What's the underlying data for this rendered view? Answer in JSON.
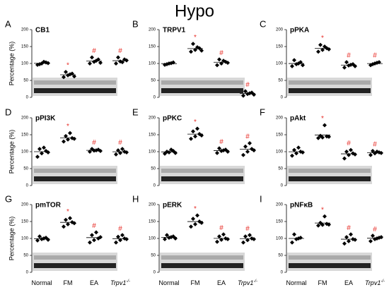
{
  "title": "Hypo",
  "y_label": "Percentage (%)",
  "categories": [
    {
      "text": "Normal"
    },
    {
      "text": "FM"
    },
    {
      "text": "EA"
    },
    {
      "text": "Trpv1",
      "sup": "-/-"
    }
  ],
  "chart_data": [
    {
      "type": "scatter",
      "panel": "A",
      "title": "CB1",
      "ylim": [
        0,
        200
      ],
      "yticks": [
        0,
        50,
        100,
        150,
        200
      ],
      "color": "#000000",
      "annotation_color": "#e8302a",
      "groups": [
        [
          96,
          100,
          103,
          98,
          105,
          101
        ],
        [
          60,
          65,
          70,
          75,
          68,
          62
        ],
        [
          100,
          105,
          112,
          118,
          108,
          102
        ],
        [
          100,
          106,
          112,
          118,
          104,
          109
        ]
      ],
      "annotations": [
        null,
        "*",
        "#",
        "#"
      ]
    },
    {
      "type": "scatter",
      "panel": "B",
      "title": "TRPV1",
      "ylim": [
        0,
        200
      ],
      "yticks": [
        0,
        50,
        100,
        150,
        200
      ],
      "color": "#000000",
      "annotation_color": "#e8302a",
      "groups": [
        [
          96,
          100,
          103,
          98,
          101
        ],
        [
          135,
          140,
          145,
          158,
          148,
          138
        ],
        [
          95,
          100,
          105,
          112,
          108,
          102
        ],
        [
          5,
          10,
          14,
          18,
          12,
          8
        ]
      ],
      "annotations": [
        null,
        "*",
        "#",
        "#"
      ]
    },
    {
      "type": "scatter",
      "panel": "C",
      "title": "pPKA",
      "ylim": [
        0,
        200
      ],
      "yticks": [
        0,
        50,
        100,
        150,
        200
      ],
      "color": "#000000",
      "annotation_color": "#e8302a",
      "groups": [
        [
          92,
          98,
          104,
          110,
          100,
          95
        ],
        [
          135,
          140,
          145,
          155,
          150,
          142
        ],
        [
          88,
          94,
          98,
          104,
          96,
          92
        ],
        [
          95,
          100,
          104,
          98,
          102
        ]
      ],
      "annotations": [
        null,
        "*",
        "#",
        "#"
      ]
    },
    {
      "type": "scatter",
      "panel": "D",
      "title": "pPI3K",
      "ylim": [
        0,
        200
      ],
      "yticks": [
        0,
        50,
        100,
        150,
        200
      ],
      "color": "#000000",
      "annotation_color": "#e8302a",
      "groups": [
        [
          85,
          95,
          102,
          108,
          112,
          98
        ],
        [
          130,
          136,
          140,
          146,
          155,
          138
        ],
        [
          100,
          103,
          106,
          108,
          104,
          102
        ],
        [
          92,
          96,
          100,
          104,
          108,
          98
        ]
      ],
      "annotations": [
        null,
        "*",
        "#",
        "#"
      ]
    },
    {
      "type": "scatter",
      "panel": "E",
      "title": "pPKC",
      "ylim": [
        0,
        200
      ],
      "yticks": [
        0,
        50,
        100,
        150,
        200
      ],
      "color": "#000000",
      "annotation_color": "#e8302a",
      "groups": [
        [
          94,
          98,
          102,
          100,
          106,
          96
        ],
        [
          138,
          145,
          152,
          160,
          168,
          148
        ],
        [
          96,
          102,
          106,
          110,
          104,
          100
        ],
        [
          90,
          100,
          108,
          115,
          125,
          104
        ]
      ],
      "annotations": [
        null,
        "*",
        "#",
        "#"
      ]
    },
    {
      "type": "scatter",
      "panel": "F",
      "title": "pAkt",
      "ylim": [
        0,
        200
      ],
      "yticks": [
        0,
        50,
        100,
        150,
        200
      ],
      "color": "#000000",
      "annotation_color": "#e8302a",
      "groups": [
        [
          88,
          95,
          100,
          105,
          112,
          98
        ],
        [
          140,
          142,
          145,
          147,
          178,
          144
        ],
        [
          80,
          90,
          95,
          100,
          105,
          92
        ],
        [
          90,
          95,
          98,
          102,
          100,
          96
        ]
      ],
      "annotations": [
        null,
        "*",
        "#",
        "#"
      ]
    },
    {
      "type": "scatter",
      "panel": "G",
      "title": "pmTOR",
      "ylim": [
        0,
        200
      ],
      "yticks": [
        0,
        50,
        100,
        150,
        200
      ],
      "color": "#000000",
      "annotation_color": "#e8302a",
      "groups": [
        [
          94,
          98,
          102,
          106,
          100,
          96
        ],
        [
          135,
          142,
          148,
          155,
          160,
          145
        ],
        [
          88,
          95,
          100,
          110,
          118,
          104
        ],
        [
          88,
          95,
          100,
          105,
          110,
          98
        ]
      ],
      "annotations": [
        null,
        "*",
        "#",
        "#"
      ]
    },
    {
      "type": "scatter",
      "panel": "H",
      "title": "pERK",
      "ylim": [
        0,
        200
      ],
      "yticks": [
        0,
        50,
        100,
        150,
        200
      ],
      "color": "#000000",
      "annotation_color": "#e8302a",
      "groups": [
        [
          98,
          102,
          106,
          110,
          104,
          100
        ],
        [
          135,
          142,
          150,
          158,
          168,
          146
        ],
        [
          90,
          96,
          100,
          106,
          112,
          98
        ],
        [
          88,
          95,
          100,
          106,
          110,
          98
        ]
      ],
      "annotations": [
        null,
        "*",
        "#",
        "#"
      ]
    },
    {
      "type": "scatter",
      "panel": "I",
      "title": "pNFκB",
      "ylim": [
        0,
        200
      ],
      "yticks": [
        0,
        50,
        100,
        150,
        200
      ],
      "color": "#000000",
      "annotation_color": "#e8302a",
      "groups": [
        [
          88,
          98,
          102,
          112,
          100
        ],
        [
          138,
          140,
          143,
          146,
          165,
          141
        ],
        [
          85,
          92,
          98,
          104,
          112,
          96
        ],
        [
          92,
          98,
          102,
          108,
          100,
          104
        ]
      ],
      "annotations": [
        null,
        "*",
        "#",
        "#"
      ]
    }
  ]
}
